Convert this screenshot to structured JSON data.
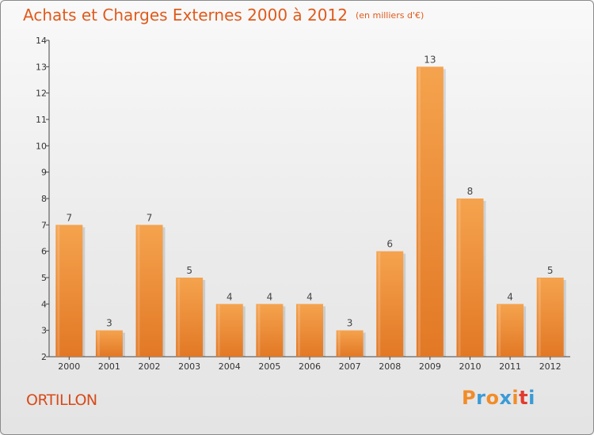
{
  "header": {
    "title": "Achats et Charges Externes 2000 à 2012",
    "subtitle": "(en milliers d'€)"
  },
  "footer": {
    "commune": "ORTILLON",
    "logo_text": "Proxiti"
  },
  "colors": {
    "title": "#e05a1c",
    "bar_top": "#f5a34e",
    "bar_bottom": "#e27825",
    "logo_letters": [
      "#f28c28",
      "#3b9bd6",
      "#f28c28",
      "#3b9bd6",
      "#f28c28",
      "#e23a2e",
      "#3b9bd6"
    ]
  },
  "chart_data": {
    "type": "bar",
    "categories": [
      "2000",
      "2001",
      "2002",
      "2003",
      "2004",
      "2005",
      "2006",
      "2007",
      "2008",
      "2009",
      "2010",
      "2011",
      "2012"
    ],
    "values": [
      7,
      3,
      7,
      5,
      4,
      4,
      4,
      3,
      6,
      13,
      8,
      4,
      5
    ],
    "ylim": [
      2,
      14
    ],
    "yticks": [
      2,
      3,
      4,
      5,
      6,
      7,
      8,
      9,
      10,
      11,
      12,
      13,
      14
    ],
    "grid": false,
    "legend": "none",
    "data_labels": true
  }
}
